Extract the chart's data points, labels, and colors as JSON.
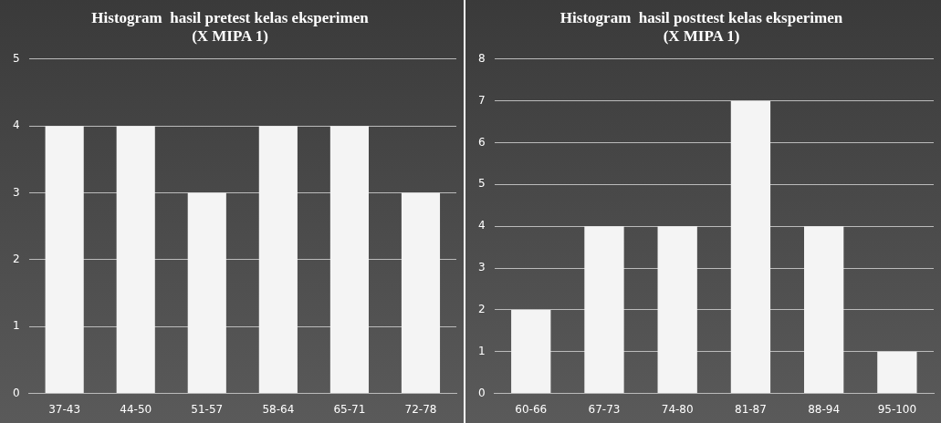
{
  "chart_data": [
    {
      "type": "bar",
      "title": "Histogram  hasil pretest kelas eksperimen\n(X MIPA 1)",
      "categories": [
        "37-43",
        "44-50",
        "51-57",
        "58-64",
        "65-71",
        "72-78"
      ],
      "values": [
        4,
        4,
        3,
        4,
        4,
        3
      ],
      "color": "#f4f4f4",
      "ylim": [
        0,
        5
      ],
      "yticks": [
        0,
        1,
        2,
        3,
        4,
        5
      ],
      "grid": "y"
    },
    {
      "type": "bar",
      "title": "Histogram  hasil posttest kelas eksperimen\n(X MIPA 1)",
      "categories": [
        "60-66",
        "67-73",
        "74-80",
        "81-87",
        "88-94",
        "95-100"
      ],
      "values": [
        2,
        4,
        4,
        7,
        4,
        1
      ],
      "color": "#f4f4f4",
      "ylim": [
        0,
        8
      ],
      "yticks": [
        0,
        1,
        2,
        3,
        4,
        5,
        6,
        7,
        8
      ],
      "grid": "y"
    }
  ]
}
